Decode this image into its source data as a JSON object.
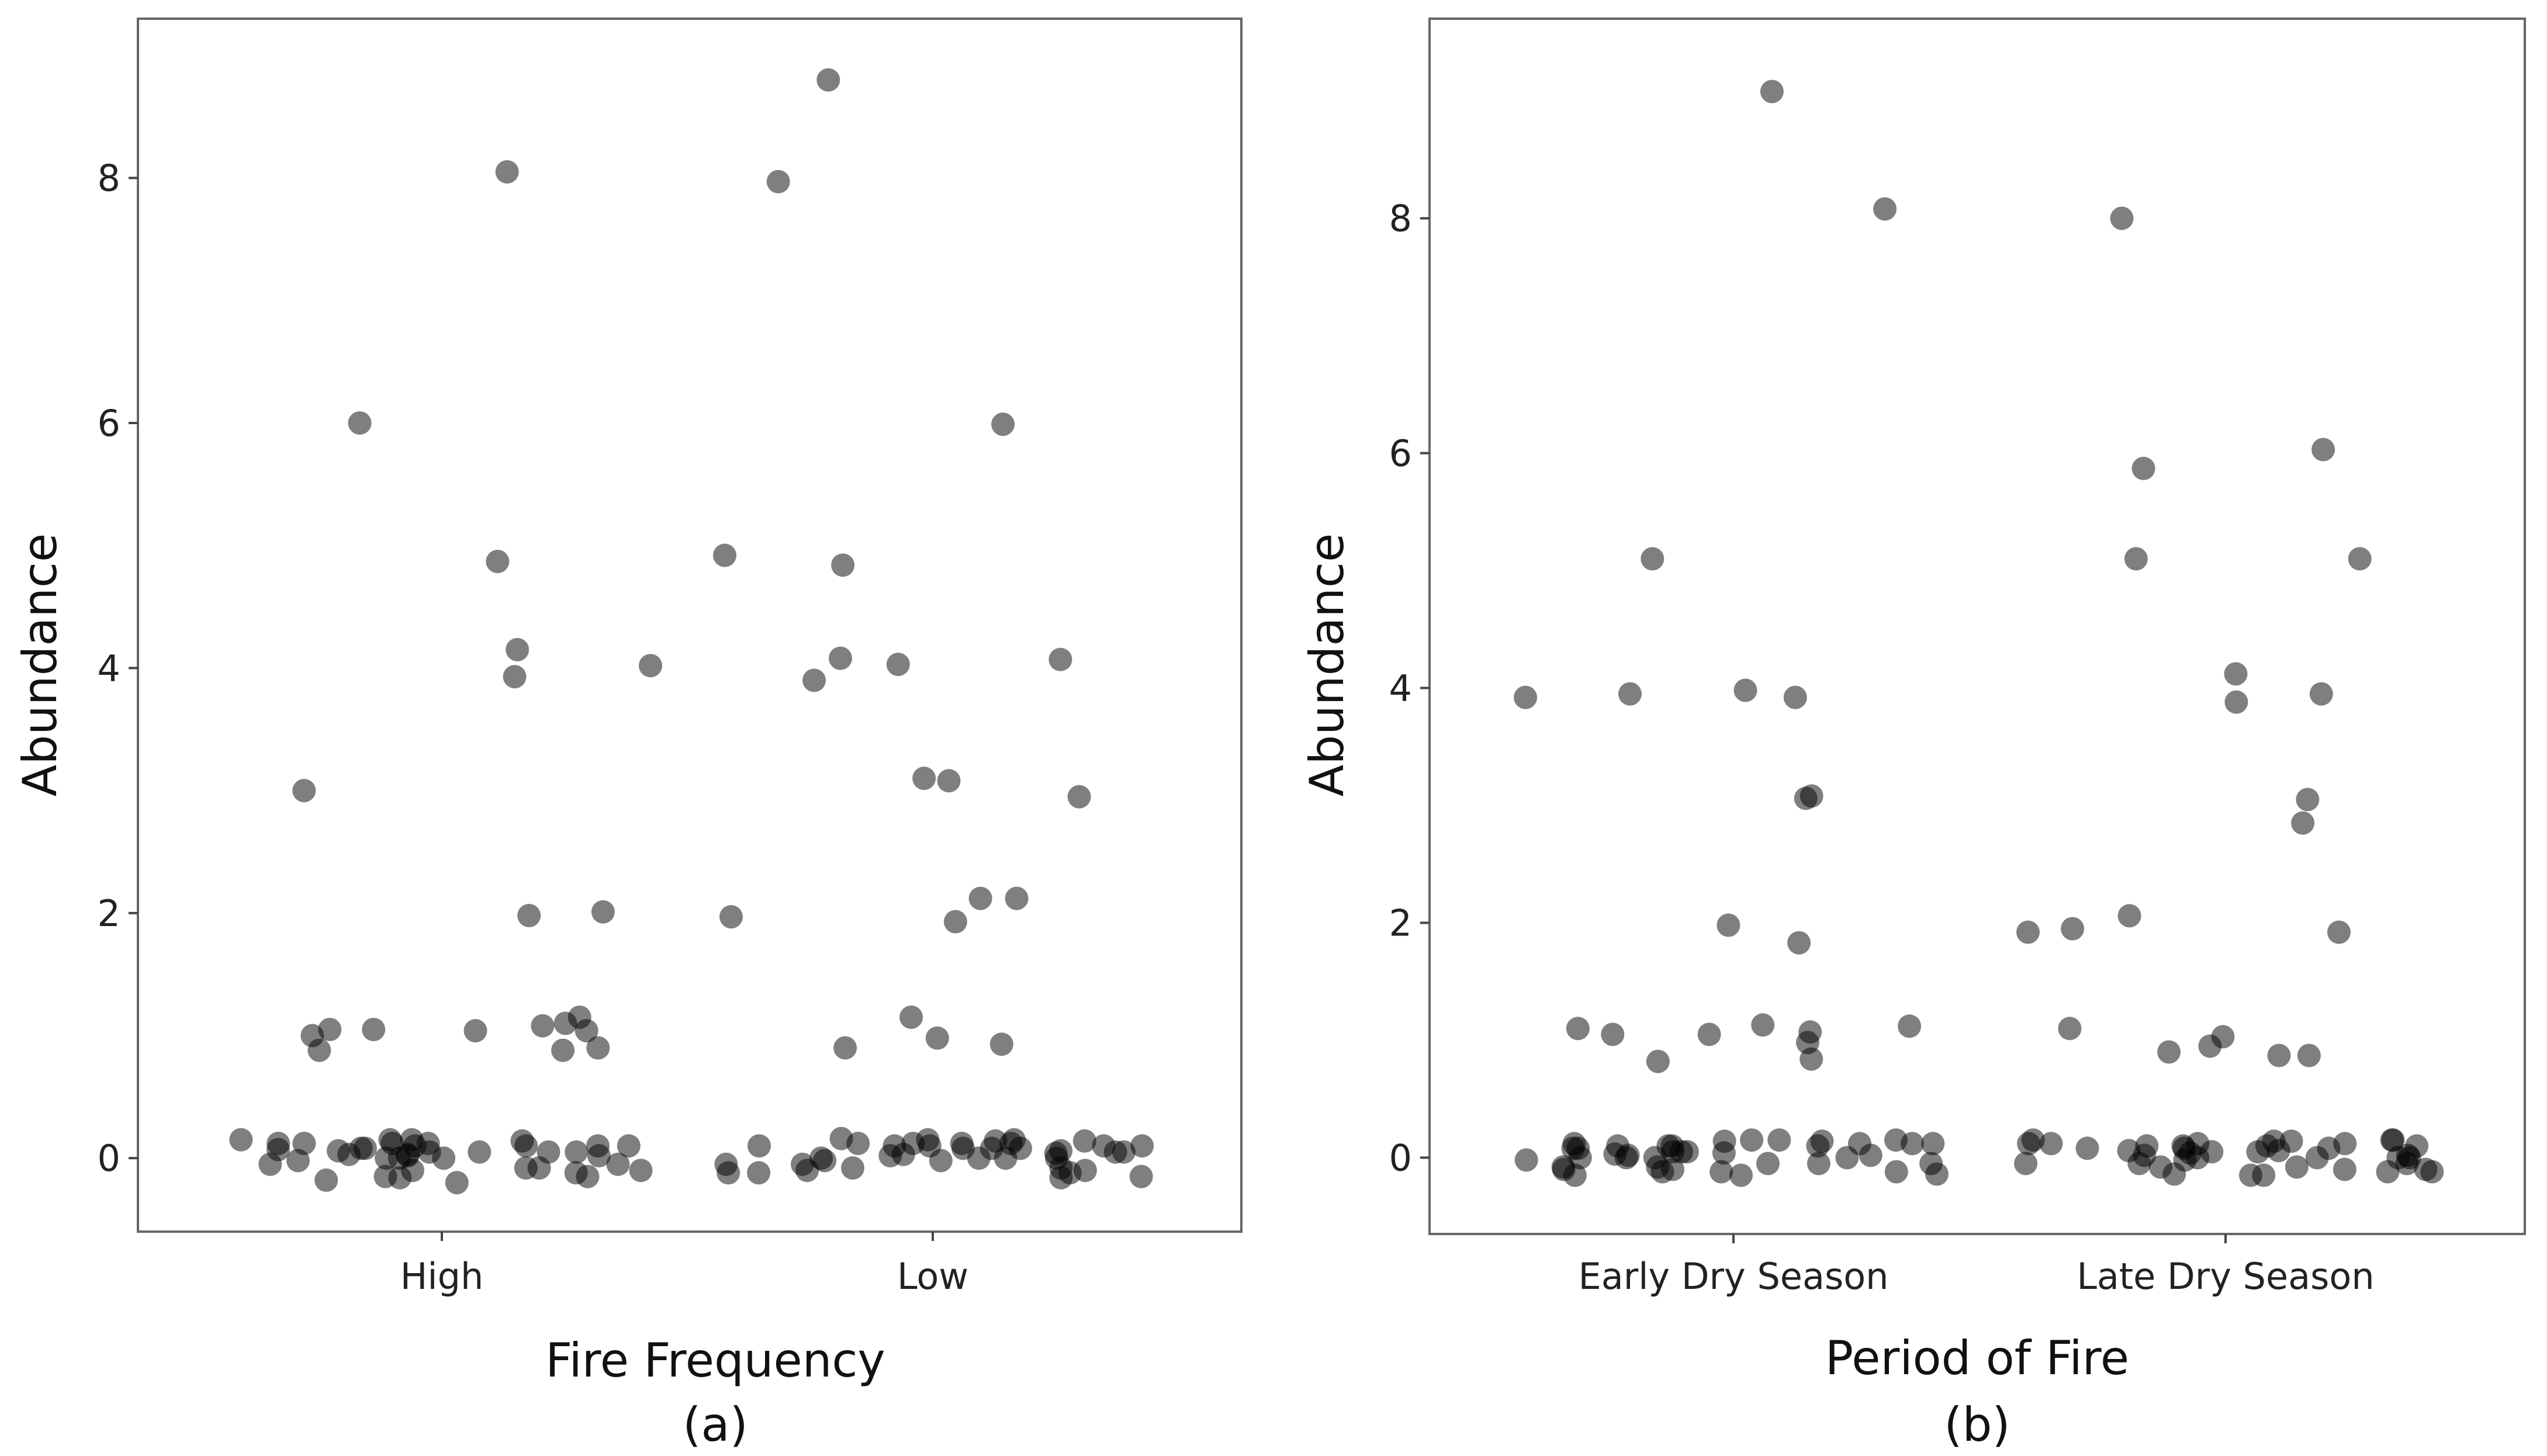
{
  "chart_data": [
    {
      "type": "scatter",
      "panel_label": "(a)",
      "xlabel": "Fire Frequency",
      "ylabel": "Abundance",
      "categories": [
        "High",
        "Low"
      ],
      "ylim": [
        -0.6,
        9.3
      ],
      "yticks": [
        0,
        2,
        4,
        6,
        8
      ],
      "grid": false,
      "series": [
        {
          "name": "High",
          "values": [
            8.05,
            6.0,
            4.87,
            4.02,
            4.15,
            3.93,
            3.0,
            2.01,
            1.98,
            1.15,
            1.08,
            1.05,
            1.1,
            1.0,
            1.04,
            1.05,
            0.88,
            0.88,
            0.9,
            1.04,
            0.12,
            0.05,
            -0.08,
            -0.15,
            0.03,
            0.0,
            -0.05,
            0.1,
            0.02,
            0.15,
            0.05,
            0.12,
            -0.02,
            0.08,
            0.15,
            0.0,
            -0.1,
            0.12,
            0.05,
            -0.18,
            0.1,
            0.02,
            -0.12,
            0.08,
            -0.2,
            -0.15,
            0.1,
            0.07,
            0.05,
            -0.05,
            0.14,
            0.0,
            -0.08,
            0.06,
            0.12,
            -0.16,
            0.03,
            0.1,
            -0.1,
            0.15
          ]
        },
        {
          "name": "Low",
          "values": [
            8.8,
            7.97,
            5.99,
            4.92,
            4.84,
            4.08,
            4.03,
            3.9,
            4.07,
            3.1,
            3.08,
            2.95,
            2.12,
            2.12,
            1.97,
            1.93,
            1.15,
            0.98,
            0.93,
            0.9,
            0.15,
            0.05,
            -0.1,
            -0.02,
            0.1,
            0.0,
            -0.12,
            0.08,
            0.14,
            0.02,
            -0.08,
            0.12,
            0.16,
            0.04,
            -0.15,
            0.1,
            -0.05,
            0.12,
            0.0,
            -0.1,
            0.08,
            0.15,
            -0.12,
            0.05,
            0.1,
            -0.02,
            0.12,
            0.06,
            -0.08,
            0.14,
            0.0,
            -0.16,
            0.1,
            0.03,
            -0.05,
            0.12,
            0.08,
            -0.12,
            0.0,
            0.1
          ]
        }
      ]
    },
    {
      "type": "scatter",
      "panel_label": "(b)",
      "xlabel": "Period of Fire",
      "ylabel": "Abundance",
      "categories": [
        "Early Dry Season",
        "Late Dry Season"
      ],
      "ylim": [
        -0.65,
        9.7
      ],
      "yticks": [
        0,
        2,
        4,
        6,
        8
      ],
      "grid": false,
      "series": [
        {
          "name": "Early Dry Season",
          "values": [
            9.08,
            8.08,
            5.1,
            3.92,
            3.95,
            3.98,
            3.92,
            3.08,
            3.06,
            1.98,
            1.83,
            1.12,
            1.07,
            1.1,
            1.13,
            1.05,
            0.98,
            1.05,
            0.82,
            0.84,
            -0.1,
            0.05,
            0.0,
            -0.12,
            0.08,
            0.15,
            -0.05,
            0.1,
            -0.15,
            0.02,
            0.12,
            -0.08,
            0.04,
            0.14,
            0.0,
            -0.12,
            0.1,
            -0.02,
            0.15,
            0.05,
            -0.1,
            0.08,
            0.12,
            -0.15,
            0.0,
            0.14,
            -0.05,
            0.1,
            0.03,
            -0.12,
            0.12,
            0.0,
            -0.08,
            0.15,
            0.05,
            -0.14,
            0.1,
            0.02,
            -0.05,
            0.12
          ]
        },
        {
          "name": "Late Dry Season",
          "values": [
            8.0,
            6.03,
            5.87,
            5.1,
            5.1,
            4.12,
            3.95,
            3.88,
            3.05,
            2.85,
            2.06,
            1.95,
            1.92,
            1.92,
            1.1,
            1.03,
            0.95,
            0.9,
            0.87,
            0.87,
            0.05,
            -0.08,
            0.12,
            0.0,
            -0.15,
            0.1,
            0.02,
            -0.05,
            0.14,
            0.08,
            -0.12,
            0.06,
            0.15,
            -0.02,
            0.1,
            0.0,
            -0.1,
            0.12,
            0.04,
            -0.14,
            0.08,
            0.15,
            -0.05,
            0.1,
            0.0,
            -0.12,
            0.12,
            0.05,
            -0.08,
            0.15,
            0.02,
            -0.1,
            0.1,
            0.06,
            -0.15,
            0.12,
            0.0,
            0.08,
            -0.05,
            0.14
          ]
        }
      ]
    }
  ]
}
